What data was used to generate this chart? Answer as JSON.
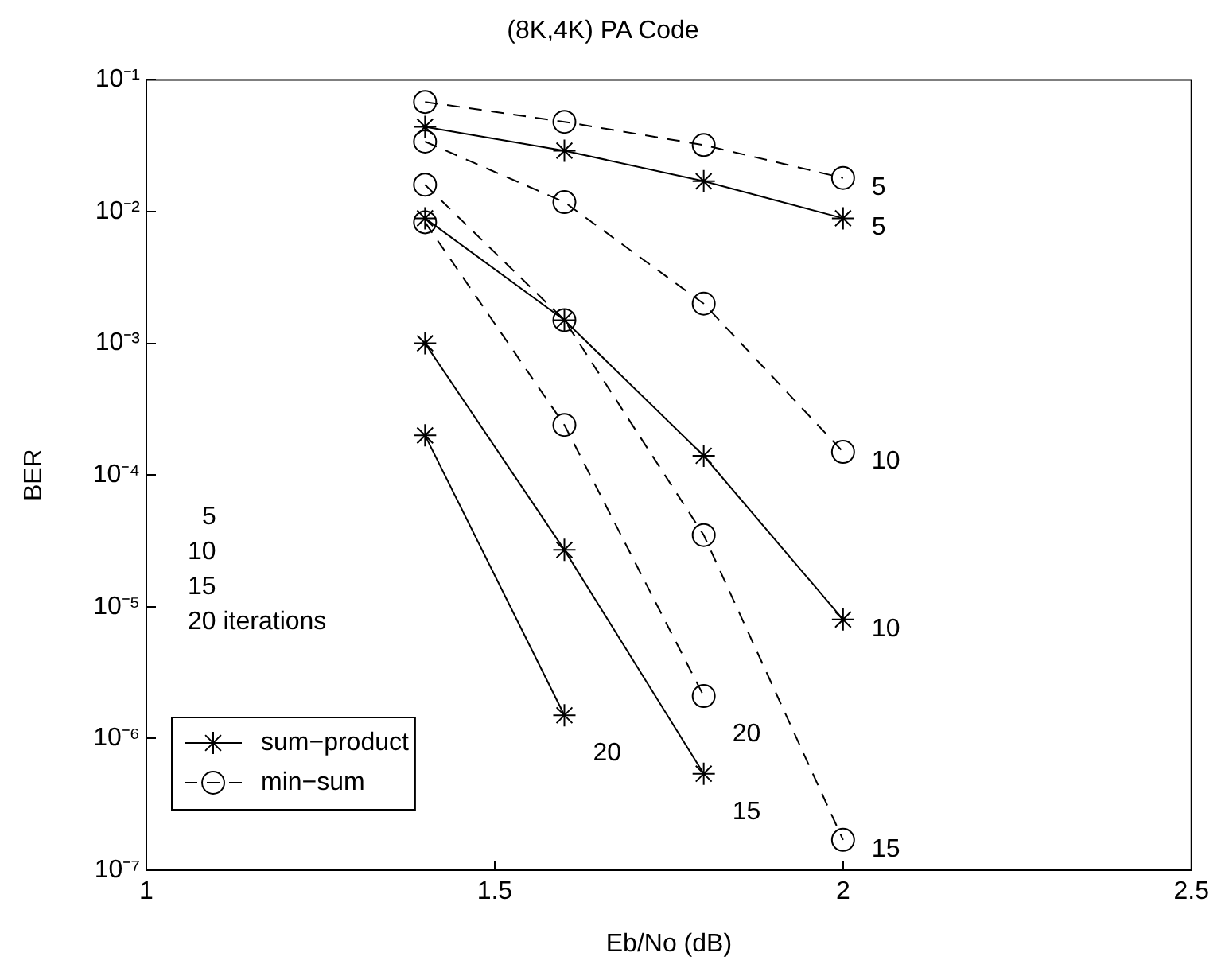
{
  "chart_data": {
    "type": "line",
    "title": "(8K,4K) PA Code",
    "xlabel": "Eb/No (dB)",
    "ylabel": "BER",
    "log": "y",
    "x": [
      1.4,
      1.6,
      1.8,
      2.0
    ],
    "xlim": [
      1,
      2.5
    ],
    "xticks": [
      1,
      1.5,
      2,
      2.5
    ],
    "ylim": [
      1e-07,
      0.1
    ],
    "yticks": [
      {
        "value": 1e-07,
        "label": "10⁻⁷"
      },
      {
        "value": 1e-06,
        "label": "10⁻⁶"
      },
      {
        "value": 1e-05,
        "label": "10⁻⁵"
      },
      {
        "value": 0.0001,
        "label": "10⁻⁴"
      },
      {
        "value": 0.001,
        "label": "10⁻³"
      },
      {
        "value": 0.01,
        "label": "10⁻²"
      },
      {
        "value": 0.1,
        "label": "10⁻¹"
      }
    ],
    "legend": "bottom left",
    "series": [
      {
        "name": "sum−product",
        "color": "#000000",
        "marker": "cross",
        "line_style": "solid",
        "values": [
          0.044,
          0.029,
          0.017,
          0.0089
        ]
      },
      {
        "color": "#000000",
        "marker": "cross",
        "line_style": "solid",
        "values": [
          0.0089,
          0.0015,
          0.00014,
          8e-06
        ]
      },
      {
        "color": "#000000",
        "marker": "cross",
        "line_style": "solid",
        "values": [
          0.001,
          2.7e-05,
          5.4e-07,
          null
        ]
      },
      {
        "color": "#000000",
        "marker": "cross",
        "line_style": "solid",
        "values": [
          0.0002,
          1.5e-06,
          null,
          null
        ]
      },
      {
        "name": "min−sum",
        "color": "#000000",
        "marker": "circle",
        "line_style": "dashed",
        "values": [
          0.068,
          0.048,
          0.032,
          0.018
        ]
      },
      {
        "color": "#000000",
        "marker": "circle",
        "line_style": "dashed",
        "values": [
          0.034,
          0.0118,
          0.002,
          0.00015
        ]
      },
      {
        "color": "#000000",
        "marker": "circle",
        "line_style": "dashed",
        "values": [
          0.016,
          0.0015,
          3.5e-05,
          1.7e-07
        ]
      },
      {
        "color": "#000000",
        "marker": "circle",
        "line_style": "dashed",
        "values": [
          0.0083,
          0.00024,
          2.1e-06,
          null
        ]
      }
    ],
    "annotations": [
      "5",
      "10",
      "15",
      "20 iterations",
      {
        "text": "5",
        "x": 2.0,
        "y": 0.0089
      },
      {
        "text": "5",
        "x": 2.0,
        "y": 0.018
      },
      {
        "text": "10",
        "x": 2.0,
        "y": 8e-06
      },
      {
        "text": "10",
        "x": 2.0,
        "y": 0.00015
      },
      {
        "text": "15",
        "x": 1.8,
        "y": 5.4e-07
      },
      {
        "text": "15",
        "x": 2.0,
        "y": 1.7e-07
      },
      {
        "text": "20",
        "x": 1.6,
        "y": 1.5e-06
      },
      {
        "text": "20",
        "x": 1.8,
        "y": 2.1e-06
      }
    ]
  }
}
